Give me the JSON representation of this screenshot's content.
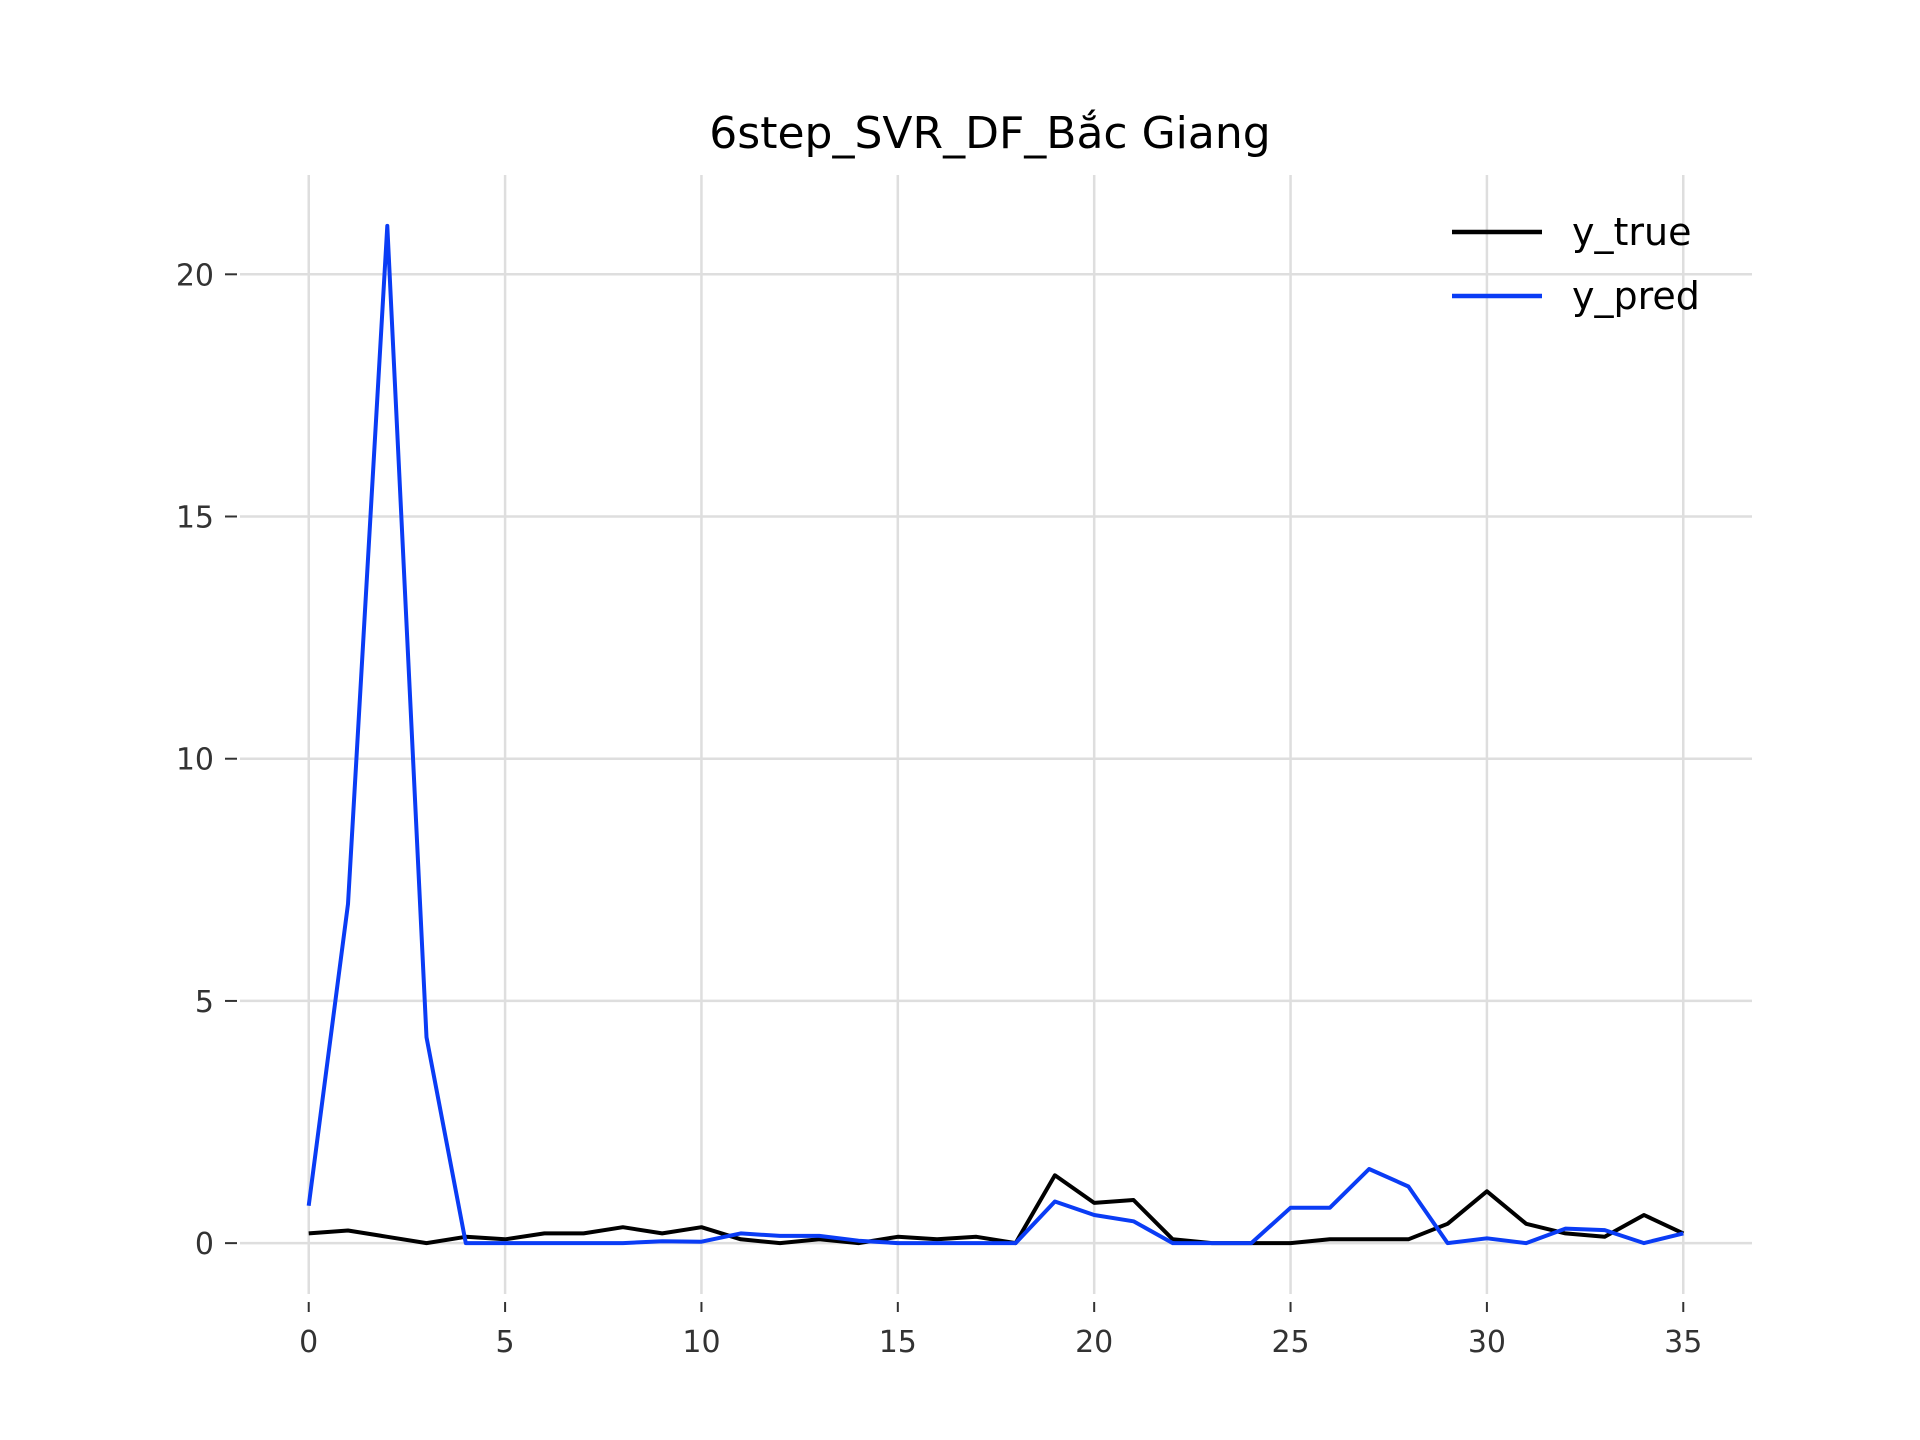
{
  "chart_data": {
    "type": "line",
    "title": "6step_SVR_DF_Bắc Giang",
    "xlabel": "",
    "ylabel": "",
    "x": [
      0,
      1,
      2,
      3,
      4,
      5,
      6,
      7,
      8,
      9,
      10,
      11,
      12,
      13,
      14,
      15,
      16,
      17,
      18,
      19,
      20,
      21,
      22,
      23,
      24,
      25,
      26,
      27,
      28,
      29,
      30,
      31,
      32,
      33,
      34,
      35
    ],
    "xlim": [
      -1.75,
      36.75
    ],
    "ylim": [
      -1.05,
      22.05
    ],
    "xticks": [
      0,
      5,
      10,
      15,
      20,
      25,
      30,
      35
    ],
    "yticks": [
      0,
      5,
      10,
      15,
      20
    ],
    "grid": true,
    "legend_position": "top-right",
    "series": [
      {
        "name": "y_true",
        "color": "#000000",
        "values": [
          0.2,
          0.26,
          0.13,
          0.0,
          0.13,
          0.08,
          0.2,
          0.2,
          0.33,
          0.2,
          0.33,
          0.08,
          0.0,
          0.08,
          0.0,
          0.13,
          0.08,
          0.13,
          0.0,
          1.4,
          0.83,
          0.89,
          0.08,
          0.0,
          0.0,
          0.0,
          0.08,
          0.08,
          0.08,
          0.4,
          1.07,
          0.4,
          0.2,
          0.13,
          0.58,
          0.2
        ]
      },
      {
        "name": "y_pred",
        "color": "#0a3cf5",
        "values": [
          0.77,
          7.0,
          21.0,
          4.25,
          0.0,
          0.0,
          0.0,
          0.0,
          0.0,
          0.04,
          0.03,
          0.2,
          0.15,
          0.15,
          0.05,
          0.0,
          0.0,
          0.0,
          0.0,
          0.86,
          0.58,
          0.45,
          0.0,
          0.0,
          0.0,
          0.73,
          0.73,
          1.53,
          1.17,
          0.0,
          0.1,
          0.0,
          0.3,
          0.27,
          0.0,
          0.2
        ]
      }
    ]
  }
}
